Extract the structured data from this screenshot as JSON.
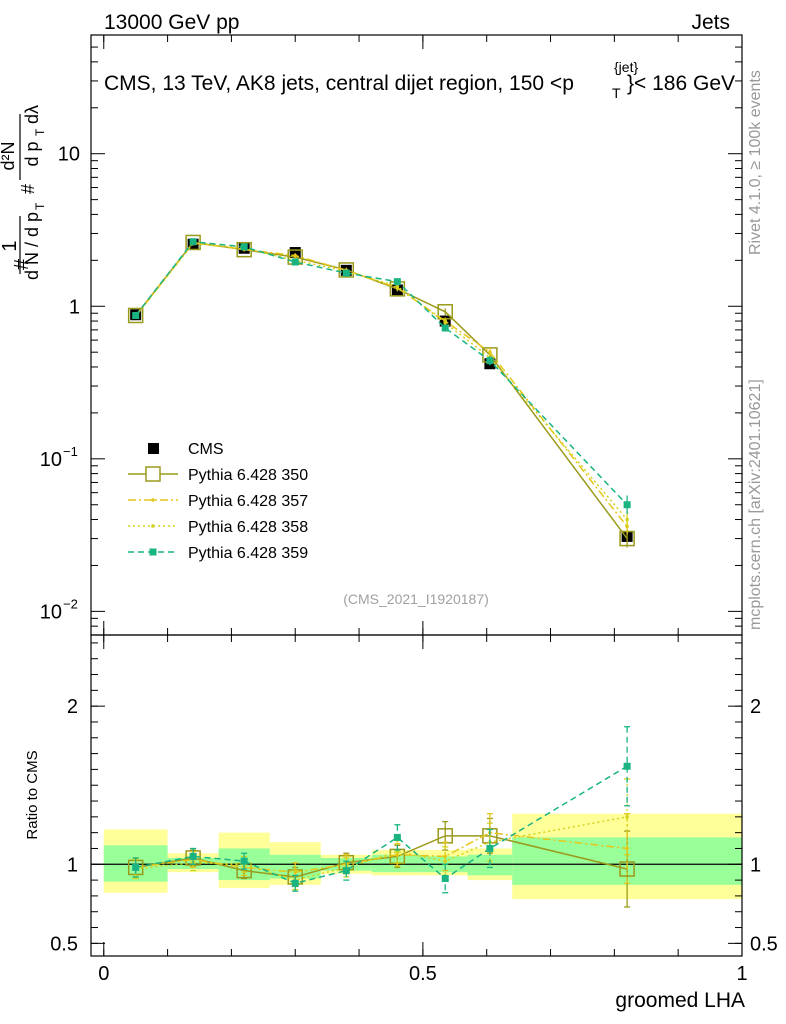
{
  "header": {
    "left": "13000 GeV pp",
    "right": "Jets"
  },
  "side_texts": {
    "rivet": "Rivet 4.1.0, ≥ 100k events",
    "mcplots": "mcplots.cern.ch [arXiv:2401.10621]"
  },
  "chart_data": {
    "type": "line",
    "title": "CMS, 13 TeV, AK8 jets, central dijet region, 150 <p",
    "title_sub": "T",
    "title_sup": "{jet}",
    "title_tail": "}< 186 GeV",
    "watermark": "(CMS_2021_I1920187)",
    "xlabel": "groomed LHA",
    "ylabel_main": "1/N dN/dpT dλ (#)",
    "ylabel_ratio": "Ratio to CMS",
    "xlim": [
      -0.02,
      1.0
    ],
    "ylim_main": [
      0.007,
      60
    ],
    "ylim_ratio": [
      0.42,
      2.45
    ],
    "x_ticks": [
      {
        "value": 0,
        "label": "0"
      },
      {
        "value": 0.5,
        "label": "0.5"
      },
      {
        "value": 1,
        "label": "1"
      }
    ],
    "y_ticks_main": [
      {
        "value": 0.01,
        "base": "10",
        "exp": "−2"
      },
      {
        "value": 0.1,
        "base": "10",
        "exp": "−1"
      },
      {
        "value": 1,
        "base": "1",
        "exp": ""
      },
      {
        "value": 10,
        "base": "10",
        "exp": ""
      }
    ],
    "y_ticks_ratio": [
      {
        "value": 0.5,
        "label": "0.5"
      },
      {
        "value": 1,
        "label": "1"
      },
      {
        "value": 2,
        "label": "2"
      }
    ],
    "bin_edges": [
      0,
      0.1,
      0.18,
      0.26,
      0.34,
      0.42,
      0.5,
      0.57,
      0.64,
      1.0
    ],
    "x": [
      0.05,
      0.14,
      0.22,
      0.3,
      0.38,
      0.46,
      0.535,
      0.605,
      0.82
    ],
    "data_band_green": [
      [
        0.89,
        1.12
      ],
      [
        0.97,
        1.04
      ],
      [
        0.9,
        1.1
      ],
      [
        0.91,
        1.06
      ],
      [
        0.96,
        1.04
      ],
      [
        0.95,
        1.06
      ],
      [
        0.95,
        1.05
      ],
      [
        0.93,
        1.06
      ],
      [
        0.87,
        1.17
      ]
    ],
    "data_band_yellow": [
      [
        0.82,
        1.22
      ],
      [
        0.95,
        1.07
      ],
      [
        0.85,
        1.2
      ],
      [
        0.87,
        1.14
      ],
      [
        0.94,
        1.06
      ],
      [
        0.93,
        1.09
      ],
      [
        0.93,
        1.09
      ],
      [
        0.9,
        1.1
      ],
      [
        0.78,
        1.32
      ]
    ],
    "series": [
      {
        "name": "CMS",
        "style": "data",
        "color": "#000000",
        "values": [
          0.88,
          2.55,
          2.4,
          2.25,
          1.72,
          1.28,
          0.8,
          0.42,
          0.031
        ],
        "ratio": [
          1,
          1,
          1,
          1,
          1,
          1,
          1,
          1,
          1
        ]
      },
      {
        "name": "Pythia 6.428 350",
        "style": "solid",
        "color": "#9a9a1a",
        "values": [
          0.87,
          2.62,
          2.35,
          2.1,
          1.73,
          1.3,
          0.92,
          0.48,
          0.03
        ],
        "ratio": [
          0.98,
          1.04,
          0.96,
          0.92,
          1.01,
          1.05,
          1.18,
          1.18,
          0.97
        ],
        "ratio_err": [
          0.06,
          0.05,
          0.05,
          0.06,
          0.06,
          0.07,
          0.09,
          0.11,
          0.24
        ]
      },
      {
        "name": "Pythia 6.428 357",
        "style": "dashdot",
        "color": "#e6c619",
        "values": [
          0.86,
          2.6,
          2.36,
          2.15,
          1.72,
          1.32,
          0.8,
          0.5,
          0.036
        ],
        "ratio": [
          0.98,
          1.03,
          0.98,
          0.95,
          1.0,
          1.06,
          1.05,
          1.2,
          1.1
        ],
        "ratio_err": [
          0.06,
          0.05,
          0.05,
          0.06,
          0.06,
          0.07,
          0.09,
          0.12,
          0.22
        ]
      },
      {
        "name": "Pythia 6.428 358",
        "style": "dotted",
        "color": "#d2d21e",
        "values": [
          0.86,
          2.58,
          2.4,
          2.0,
          1.7,
          1.35,
          0.78,
          0.46,
          0.04
        ],
        "ratio": [
          0.97,
          1.01,
          1.0,
          0.9,
          0.98,
          1.08,
          1.02,
          1.14,
          1.3
        ],
        "ratio_err": [
          0.06,
          0.05,
          0.05,
          0.06,
          0.06,
          0.07,
          0.09,
          0.12,
          0.24
        ]
      },
      {
        "name": "Pythia 6.428 359",
        "style": "dashed",
        "color": "#19b482",
        "values": [
          0.87,
          2.65,
          2.45,
          1.95,
          1.65,
          1.45,
          0.72,
          0.44,
          0.05
        ],
        "ratio": [
          0.98,
          1.05,
          1.02,
          0.88,
          0.96,
          1.17,
          0.91,
          1.1,
          1.62
        ],
        "ratio_err": [
          0.06,
          0.05,
          0.05,
          0.05,
          0.06,
          0.08,
          0.09,
          0.12,
          0.25
        ]
      }
    ]
  }
}
